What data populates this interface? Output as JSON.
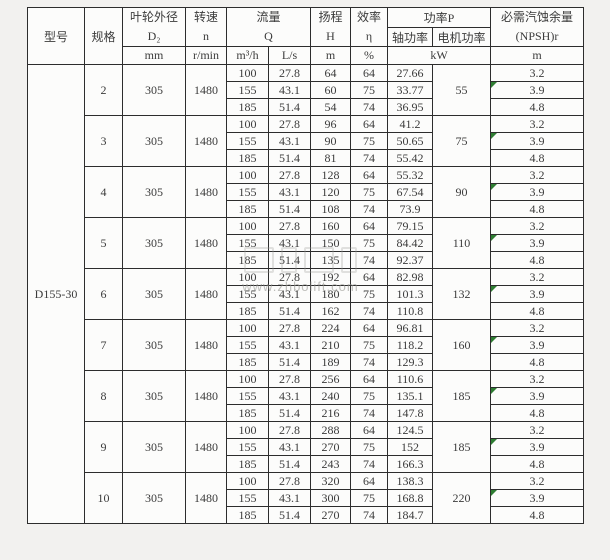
{
  "page": {
    "background": "#f2f1ef"
  },
  "colors": {
    "border": "#2d2d2d",
    "text": "#3b3b3b",
    "cell_bg": "#fcfcfb",
    "comment_marker_green": "#2e7d32",
    "watermark_gray": "#9a9a96"
  },
  "watermark": {
    "url": "www.zhbolift.com"
  },
  "table": {
    "model": "D155-30",
    "header": {
      "model": "型号",
      "spec": "规格",
      "impeller_line1": "叶轮外径",
      "impeller_line2": "D₂",
      "speed_line1": "转速",
      "speed_line2": "n",
      "flow_line1": "流量",
      "flow_line2": "Q",
      "head_line1": "扬程",
      "head_line2": "H",
      "eff_line1": "效率",
      "eff_line2": "η",
      "power": "功率P",
      "shaft_power": "轴功率",
      "motor_power": "电机功率",
      "npsh_line1": "必需汽蚀余量",
      "npsh_line2": "(NPSH)r",
      "units": {
        "impeller": "mm",
        "speed": "r/min",
        "flow_m3h": "m³/h",
        "flow_ls": "L/s",
        "head": "m",
        "eff": "%",
        "power": "kW",
        "npsh": "m"
      }
    },
    "row_keys": [
      "flow_m3h",
      "flow_ls",
      "head",
      "eff",
      "shaft_power",
      "npsh"
    ],
    "groups": [
      {
        "spec": "2",
        "d2": "305",
        "n": "1480",
        "motor_kw": "55",
        "rows": [
          [
            "100",
            "27.8",
            "64",
            "64",
            "27.66",
            "3.2"
          ],
          [
            "155",
            "43.1",
            "60",
            "75",
            "33.77",
            "3.9"
          ],
          [
            "185",
            "51.4",
            "54",
            "74",
            "36.95",
            "4.8"
          ]
        ]
      },
      {
        "spec": "3",
        "d2": "305",
        "n": "1480",
        "motor_kw": "75",
        "rows": [
          [
            "100",
            "27.8",
            "96",
            "64",
            "41.2",
            "3.2"
          ],
          [
            "155",
            "43.1",
            "90",
            "75",
            "50.65",
            "3.9"
          ],
          [
            "185",
            "51.4",
            "81",
            "74",
            "55.42",
            "4.8"
          ]
        ]
      },
      {
        "spec": "4",
        "d2": "305",
        "n": "1480",
        "motor_kw": "90",
        "rows": [
          [
            "100",
            "27.8",
            "128",
            "64",
            "55.32",
            "3.2"
          ],
          [
            "155",
            "43.1",
            "120",
            "75",
            "67.54",
            "3.9"
          ],
          [
            "185",
            "51.4",
            "108",
            "74",
            "73.9",
            "4.8"
          ]
        ]
      },
      {
        "spec": "5",
        "d2": "305",
        "n": "1480",
        "motor_kw": "110",
        "rows": [
          [
            "100",
            "27.8",
            "160",
            "64",
            "79.15",
            "3.2"
          ],
          [
            "155",
            "43.1",
            "150",
            "75",
            "84.42",
            "3.9"
          ],
          [
            "185",
            "51.4",
            "135",
            "74",
            "92.37",
            "4.8"
          ]
        ]
      },
      {
        "spec": "6",
        "d2": "305",
        "n": "1480",
        "motor_kw": "132",
        "rows": [
          [
            "100",
            "27.8",
            "192",
            "64",
            "82.98",
            "3.2"
          ],
          [
            "155",
            "43.1",
            "180",
            "75",
            "101.3",
            "3.9"
          ],
          [
            "185",
            "51.4",
            "162",
            "74",
            "110.8",
            "4.8"
          ]
        ]
      },
      {
        "spec": "7",
        "d2": "305",
        "n": "1480",
        "motor_kw": "160",
        "rows": [
          [
            "100",
            "27.8",
            "224",
            "64",
            "96.81",
            "3.2"
          ],
          [
            "155",
            "43.1",
            "210",
            "75",
            "118.2",
            "3.9"
          ],
          [
            "185",
            "51.4",
            "189",
            "74",
            "129.3",
            "4.8"
          ]
        ]
      },
      {
        "spec": "8",
        "d2": "305",
        "n": "1480",
        "motor_kw": "185",
        "rows": [
          [
            "100",
            "27.8",
            "256",
            "64",
            "110.6",
            "3.2"
          ],
          [
            "155",
            "43.1",
            "240",
            "75",
            "135.1",
            "3.9"
          ],
          [
            "185",
            "51.4",
            "216",
            "74",
            "147.8",
            "4.8"
          ]
        ]
      },
      {
        "spec": "9",
        "d2": "305",
        "n": "1480",
        "motor_kw": "185",
        "rows": [
          [
            "100",
            "27.8",
            "288",
            "64",
            "124.5",
            "3.2"
          ],
          [
            "155",
            "43.1",
            "270",
            "75",
            "152",
            "3.9"
          ],
          [
            "185",
            "51.4",
            "243",
            "74",
            "166.3",
            "4.8"
          ]
        ]
      },
      {
        "spec": "10",
        "d2": "305",
        "n": "1480",
        "motor_kw": "220",
        "rows": [
          [
            "100",
            "27.8",
            "320",
            "64",
            "138.3",
            "3.2"
          ],
          [
            "155",
            "43.1",
            "300",
            "75",
            "168.8",
            "3.9"
          ],
          [
            "185",
            "51.4",
            "270",
            "74",
            "184.7",
            "4.8"
          ]
        ]
      }
    ]
  }
}
